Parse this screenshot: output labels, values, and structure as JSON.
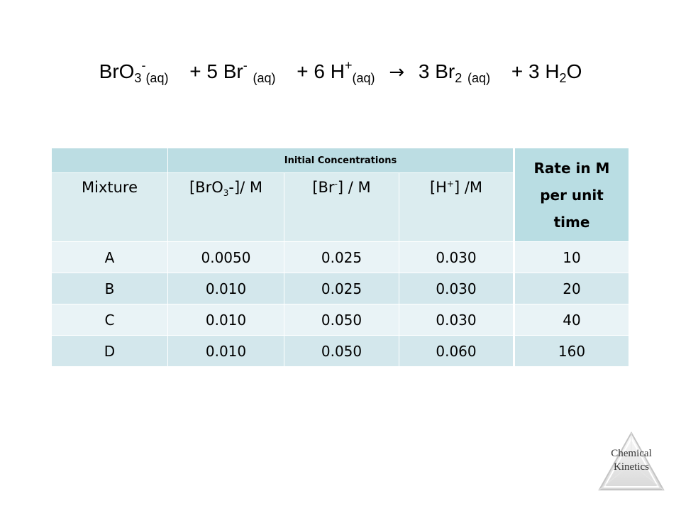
{
  "equation": {
    "t1": "BrO",
    "t1_sub": "3",
    "t1_sup": "-",
    "t1_state": "(aq)",
    "plus1": "+ 5 Br",
    "t2_sup": "-",
    "t2_state": "(aq)",
    "plus2": "+  6  H",
    "t3_sup": "+",
    "t3_state": "(aq)",
    "arrow": "→",
    "p1": "3 Br",
    "p1_sub": "2",
    "p1_state": "(aq)",
    "plus3": "+  3 H",
    "p2_sub": "2",
    "p2_tail": "O"
  },
  "table": {
    "group_header": "Initial Concentrations",
    "rate_header_line1": "Rate in M",
    "rate_header_line2": "per unit",
    "rate_header_line3": "time",
    "col_mixture": "Mixture",
    "col_bro3_a": "[BrO",
    "col_bro3_sub": "3",
    "col_bro3_b": "-]/ M",
    "col_br_a": "[Br",
    "col_br_sup": "-",
    "col_br_b": "] / M",
    "col_h_a": "[H",
    "col_h_sup": "+",
    "col_h_b": "] /M",
    "rows": [
      {
        "mixture": "A",
        "bro3": "0.0050",
        "br": "0.025",
        "h": "0.030",
        "rate": "10"
      },
      {
        "mixture": "B",
        "bro3": "0.010",
        "br": "0.025",
        "h": "0.030",
        "rate": "20"
      },
      {
        "mixture": "C",
        "bro3": "0.010",
        "br": "0.050",
        "h": "0.030",
        "rate": "40"
      },
      {
        "mixture": "D",
        "bro3": "0.010",
        "br": "0.050",
        "h": "0.060",
        "rate": "160"
      }
    ]
  },
  "logo": {
    "line1": "Chemical",
    "line2": "Kinetics",
    "icon": "triangle-logo-icon"
  }
}
